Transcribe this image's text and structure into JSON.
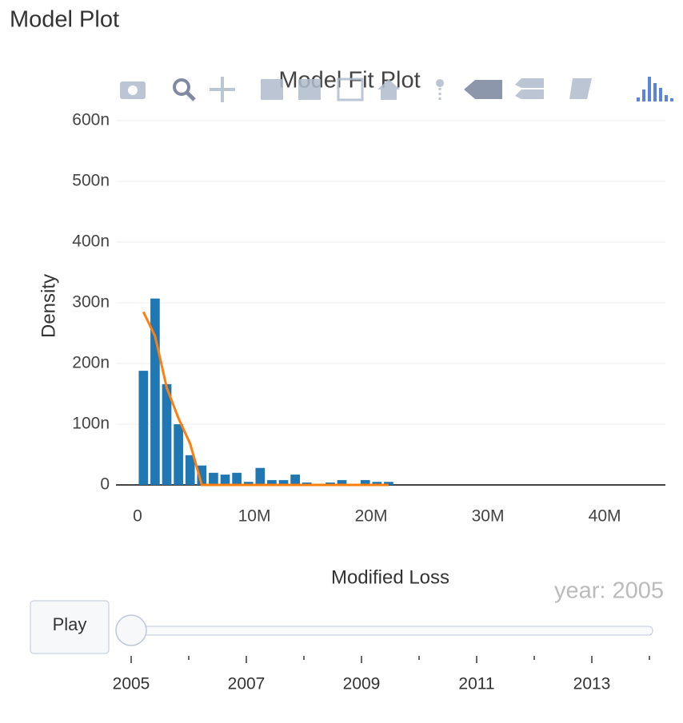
{
  "page_title": "Model Plot",
  "chart_data": {
    "type": "histogram",
    "title": "Model Fit Plot",
    "x_label": "Modified Loss",
    "y_label": "Density",
    "bins": [
      0,
      1000000,
      2000000,
      3000000,
      4000000,
      5000000,
      6000000,
      7000000,
      8000000,
      9000000,
      10000000,
      11000000,
      12000000,
      13000000,
      14000000,
      15000000,
      16000000,
      17000000,
      18000000,
      19000000,
      20000000,
      21000000,
      22000000
    ],
    "values": [
      1.88e-07,
      3.07e-07,
      1.66e-07,
      1e-07,
      4.9e-08,
      3.2e-08,
      2e-08,
      1.7e-08,
      2e-08,
      5e-09,
      2.8e-08,
      8e-09,
      8e-09,
      1.7e-08,
      4e-09,
      0,
      4e-09,
      8e-09,
      0,
      8e-09,
      5e-09,
      5e-09
    ],
    "color": "#1f77b4",
    "overlays": [
      {
        "type": "line",
        "color": "#ff7f0e",
        "x": [
          500000,
          1500000,
          2500000,
          3500000,
          4500000,
          5500000,
          6500000,
          7500000,
          8500000,
          9500000,
          10500000,
          11500000,
          12500000,
          13500000,
          14500000,
          15500000,
          16500000,
          17500000,
          18500000,
          19500000,
          20500000,
          21500000
        ],
        "values": [
          2.85e-07,
          2.45e-07,
          1.6e-07,
          1.1e-07,
          6.8e-08,
          0,
          0,
          0,
          0,
          0,
          0,
          0,
          0,
          0,
          0,
          0,
          0,
          0,
          0,
          0,
          0,
          0
        ]
      }
    ],
    "xlim": [
      -1850000,
      45200000
    ],
    "xticks": [
      0,
      {
        "value": 10000000,
        "label": "10M"
      },
      {
        "value": 20000000,
        "label": "20M"
      },
      {
        "value": 30000000,
        "label": "30M"
      },
      {
        "value": 40000000,
        "label": "40M"
      }
    ],
    "ylim": [
      0,
      6e-07
    ],
    "yticks": [
      0,
      {
        "value": 1e-07,
        "label": "100n"
      },
      {
        "value": 2e-07,
        "label": "200n"
      },
      {
        "value": 3e-07,
        "label": "300n"
      },
      {
        "value": 4e-07,
        "label": "400n"
      },
      {
        "value": 5e-07,
        "label": "500n"
      },
      {
        "value": 6e-07,
        "label": "600n"
      }
    ],
    "grid": "y"
  },
  "slider": {
    "play_button": "Play",
    "current_value": "year: 2005",
    "steps": [
      "2005",
      null,
      "2007",
      null,
      "2009",
      null,
      "2011",
      null,
      "2013",
      null
    ],
    "active": 0
  }
}
